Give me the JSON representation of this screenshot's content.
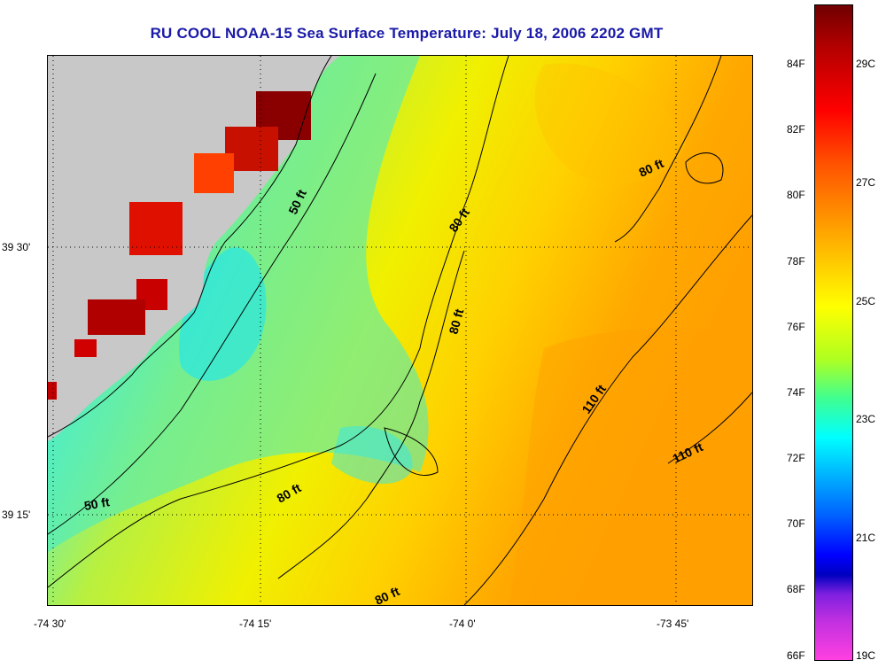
{
  "title": "RU COOL  NOAA-15  Sea Surface Temperature:  July 18, 2006 2202 GMT",
  "lon_labels": [
    "-74 30'",
    "-74 15'",
    "-74 0'",
    "-73 45'"
  ],
  "lat_labels": [
    "39 30'",
    "39 15'"
  ],
  "depth_labels": [
    "50 ft",
    "50 ft",
    "80 ft",
    "80 ft",
    "80 ft",
    "80 ft",
    "80 ft",
    "110 ft",
    "110 ft"
  ],
  "colorbar": {
    "fahrenheit": [
      "84F",
      "82F",
      "80F",
      "78F",
      "76F",
      "74F",
      "72F",
      "70F",
      "68F",
      "66F"
    ],
    "celsius": [
      "29C",
      "27C",
      "25C",
      "23C",
      "21C",
      "19C"
    ],
    "colors": [
      "#700000",
      "#ff0000",
      "#ff9000",
      "#ffff00",
      "#40ff90",
      "#00ffff",
      "#0000ff",
      "#ff40e0"
    ]
  },
  "land_color": "#c8c8c8"
}
